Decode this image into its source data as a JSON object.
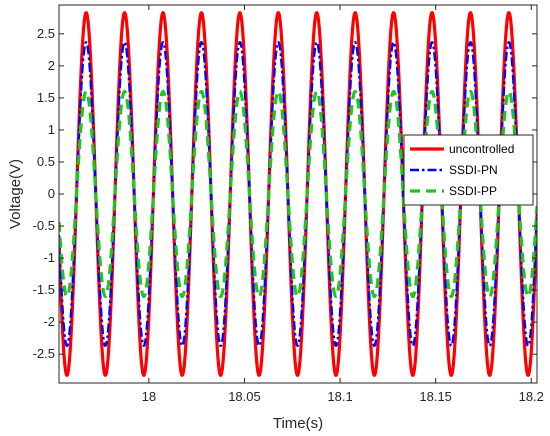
{
  "chart_data": {
    "type": "line",
    "title": "",
    "xlabel": "Time(s)",
    "ylabel": "Voltage(V)",
    "xlim": [
      17.953,
      18.203
    ],
    "ylim": [
      -2.95,
      2.95
    ],
    "x_ticks": [
      18,
      18.05,
      18.1,
      18.15,
      18.2
    ],
    "x_tick_labels": [
      "18",
      "18.05",
      "18.1",
      "18.15",
      "18.2"
    ],
    "y_ticks": [
      -2.5,
      -2,
      -1.5,
      -1,
      -0.5,
      0,
      0.5,
      1,
      1.5,
      2,
      2.5
    ],
    "y_tick_labels": [
      "-2.5",
      "-2",
      "-1.5",
      "-1",
      "-0.5",
      "0",
      "0.5",
      "1",
      "1.5",
      "2",
      "2.5"
    ],
    "grid": false,
    "legend_position": "right",
    "waveform": {
      "shape": "sinusoid",
      "period_s": 0.0201,
      "first_peak_time_s": 17.9672
    },
    "series": [
      {
        "name": "uncontrolled",
        "amplitude": 2.83,
        "color": "#ff0000",
        "style": "solid"
      },
      {
        "name": "SSDI-PN",
        "amplitude": 2.37,
        "color": "#0000ff",
        "style": "dash-dot"
      },
      {
        "name": "SSDI-PP",
        "amplitude": 1.6,
        "color": "#22c322",
        "style": "dashed"
      }
    ]
  }
}
